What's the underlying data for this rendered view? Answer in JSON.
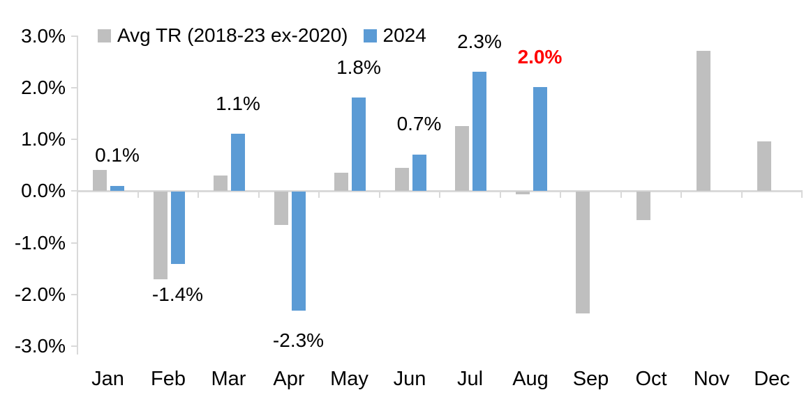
{
  "chart_data": {
    "type": "bar",
    "categories": [
      "Jan",
      "Feb",
      "Mar",
      "Apr",
      "May",
      "Jun",
      "Jul",
      "Aug",
      "Sep",
      "Oct",
      "Nov",
      "Dec"
    ],
    "series": [
      {
        "name": "Avg TR (2018-23 ex-2020)",
        "color": "#bfbfbf",
        "values": [
          0.4,
          -1.7,
          0.3,
          -0.65,
          0.35,
          0.45,
          1.25,
          -0.05,
          -2.35,
          -0.55,
          2.7,
          0.95
        ]
      },
      {
        "name": "2024",
        "color": "#5b9bd5",
        "values": [
          0.1,
          -1.4,
          1.1,
          -2.3,
          1.8,
          0.7,
          2.3,
          2.0,
          null,
          null,
          null,
          null
        ]
      }
    ],
    "data_labels": [
      {
        "month_index": 0,
        "text": "0.1%",
        "color": "#000000",
        "bold": false
      },
      {
        "month_index": 1,
        "text": "-1.4%",
        "color": "#000000",
        "bold": false
      },
      {
        "month_index": 2,
        "text": "1.1%",
        "color": "#000000",
        "bold": false
      },
      {
        "month_index": 3,
        "text": "-2.3%",
        "color": "#000000",
        "bold": false
      },
      {
        "month_index": 4,
        "text": "1.8%",
        "color": "#000000",
        "bold": false
      },
      {
        "month_index": 5,
        "text": "0.7%",
        "color": "#000000",
        "bold": false
      },
      {
        "month_index": 6,
        "text": "2.3%",
        "color": "#000000",
        "bold": false
      },
      {
        "month_index": 7,
        "text": "2.0%",
        "color": "#ff0000",
        "bold": true
      }
    ],
    "ylim": [
      -3.0,
      3.0
    ],
    "ytick_step": 1.0,
    "ytick_labels": [
      "3.0%",
      "2.0%",
      "1.0%",
      "0.0%",
      "-1.0%",
      "-2.0%",
      "-3.0%"
    ],
    "grid": false,
    "legend_position": "top",
    "axis_color": "#d9d9d9",
    "background": "#ffffff"
  }
}
